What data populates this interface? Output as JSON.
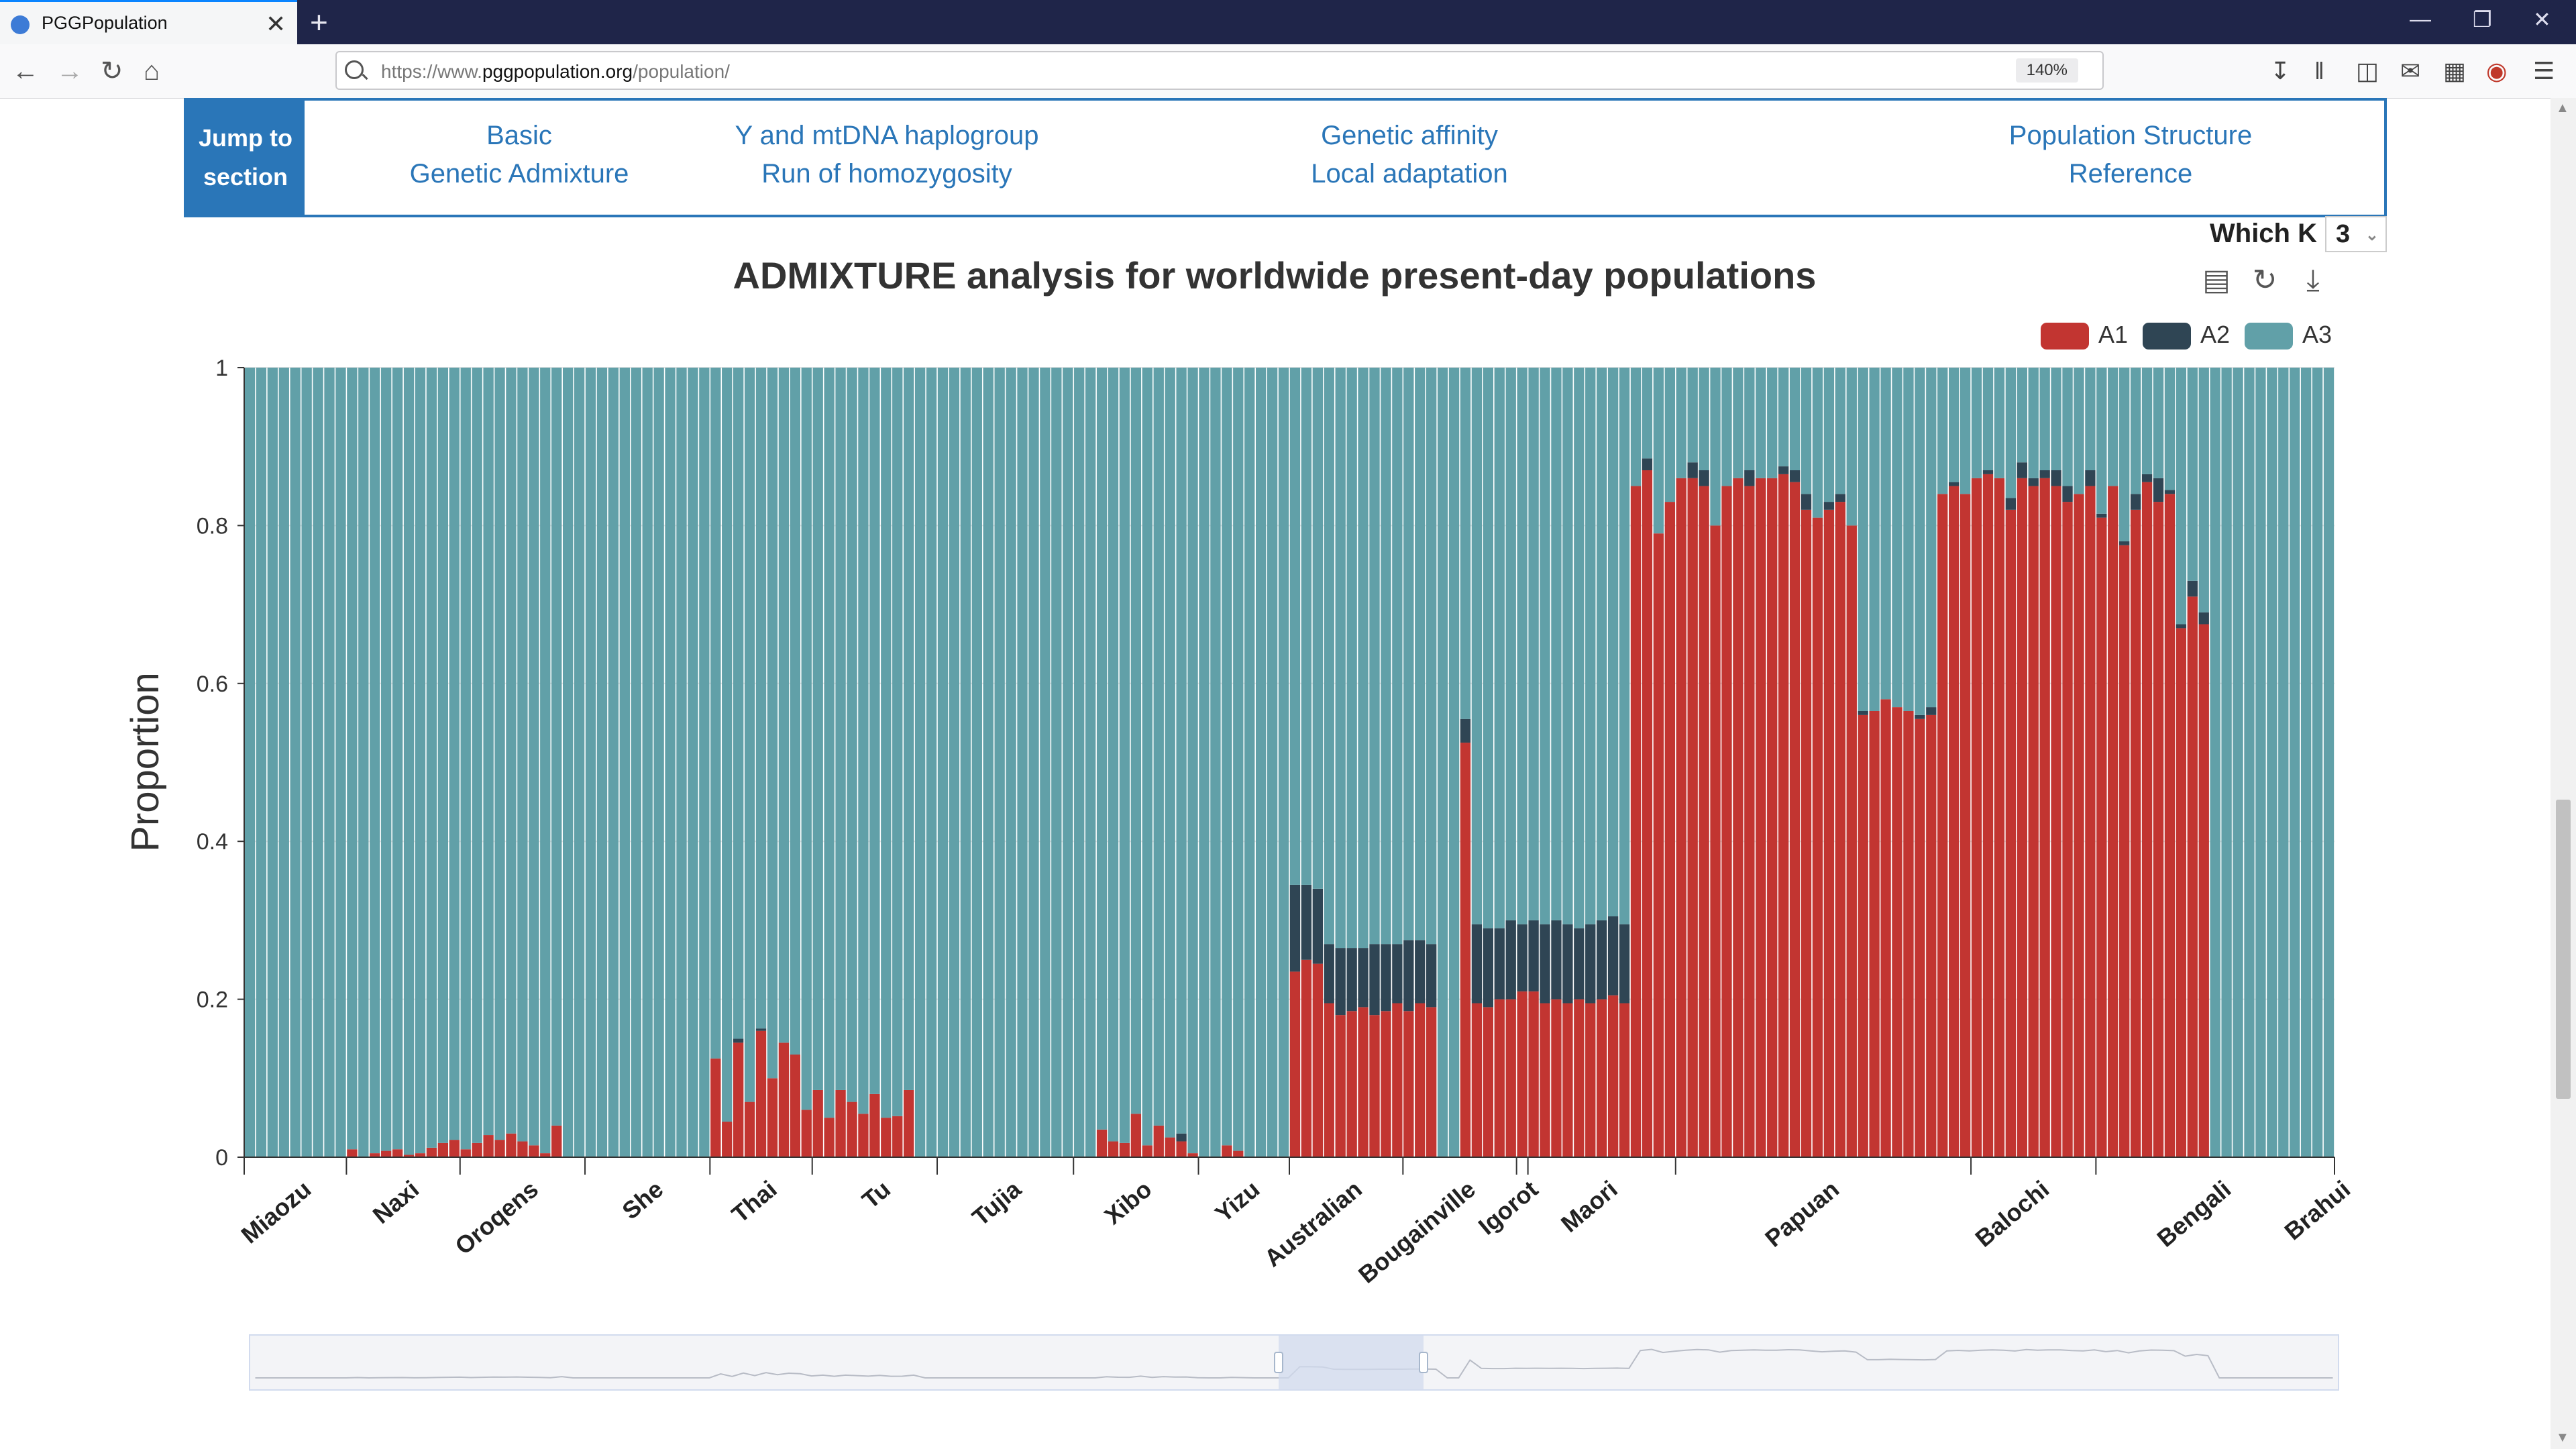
{
  "browser": {
    "tab_title": "PGGPopulation",
    "tab_close": "✕",
    "new_tab": "+",
    "url_prefix": "https://www.",
    "url_domain": "pggpopulation.org",
    "url_path": "/population/",
    "zoom": "140%",
    "window_controls": [
      "—",
      "❐",
      "✕"
    ]
  },
  "jump": {
    "label": "Jump to section",
    "columns": [
      [
        "Basic",
        "Genetic Admixture"
      ],
      [
        "Y and mtDNA haplogroup",
        "Run of homozygosity"
      ],
      [
        "Genetic affinity",
        "Local adaptation"
      ],
      [
        "Population Structure",
        "Reference"
      ]
    ]
  },
  "which_k": {
    "label": "Which K",
    "value": "3"
  },
  "chart_title": "ADMIXTURE analysis for worldwide present-day populations",
  "legend": [
    {
      "name": "A1",
      "color": "#c23531"
    },
    {
      "name": "A2",
      "color": "#2f4554"
    },
    {
      "name": "A3",
      "color": "#61a0a8"
    }
  ],
  "icons": {
    "back": "back-arrow-icon",
    "forward": "forward-arrow-icon",
    "reload": "reload-icon",
    "home": "home-icon",
    "data_view": "data-view-icon",
    "restore": "restore-icon",
    "save": "save-image-icon"
  },
  "chart_data": {
    "type": "bar",
    "stacked": true,
    "ylabel": "Proportion",
    "ylim": [
      0,
      1
    ],
    "yticks": [
      "0",
      "0.2",
      "0.4",
      "0.6",
      "0.8",
      "1"
    ],
    "populations": [
      "Miaozu",
      "Naxi",
      "Oroqens",
      "She",
      "Thai",
      "Tu",
      "Tujia",
      "Xibo",
      "Yizu",
      "Australian",
      "Bougainville",
      "Igorot",
      "Maori",
      "Papuan",
      "Balochi",
      "Bengali",
      "Brahui"
    ],
    "series": [
      {
        "name": "A1",
        "values": [
          0,
          0,
          0,
          0,
          0,
          0,
          0,
          0,
          0,
          0.01,
          0,
          0.005,
          0.008,
          0.01,
          0.003,
          0.005,
          0.012,
          0.018,
          0.022,
          0.01,
          0.018,
          0.028,
          0.022,
          0.03,
          0.02,
          0.015,
          0.005,
          0.04,
          0,
          0,
          0,
          0,
          0,
          0,
          0,
          0,
          0,
          0,
          0,
          0,
          0,
          0.125,
          0.045,
          0.145,
          0.07,
          0.16,
          0.1,
          0.145,
          0.13,
          0.06,
          0.085,
          0.05,
          0.085,
          0.07,
          0.055,
          0.08,
          0.05,
          0.052,
          0.085,
          0,
          0,
          0,
          0,
          0,
          0,
          0,
          0,
          0,
          0,
          0,
          0,
          0,
          0,
          0,
          0,
          0.035,
          0.02,
          0.018,
          0.055,
          0.015,
          0.04,
          0.025,
          0.02,
          0.005,
          0,
          0,
          0.015,
          0.008,
          0,
          0,
          0,
          0,
          0.235,
          0.25,
          0.245,
          0.195,
          0.18,
          0.185,
          0.19,
          0.18,
          0.185,
          0.195,
          0.185,
          0.195,
          0.19,
          0,
          0,
          0.525,
          0.195,
          0.19,
          0.2,
          0.2,
          0.21,
          0.21,
          0.195,
          0.2,
          0.195,
          0.2,
          0.195,
          0.2,
          0.205,
          0.195,
          0.85,
          0.87,
          0.79,
          0.83,
          0.86,
          0.86,
          0.85,
          0.8,
          0.85,
          0.86,
          0.85,
          0.86,
          0.86,
          0.865,
          0.855,
          0.82,
          0.81,
          0.82,
          0.83,
          0.8,
          0.56,
          0.565,
          0.58,
          0.57,
          0.565,
          0.555,
          0.56,
          0.84,
          0.85,
          0.84,
          0.86,
          0.865,
          0.86,
          0.82,
          0.86,
          0.85,
          0.86,
          0.85,
          0.83,
          0.84,
          0.85,
          0.81,
          0.85,
          0.775,
          0.82,
          0.855,
          0.83,
          0.84,
          0.67,
          0.71,
          0.675
        ]
      },
      {
        "name": "A2",
        "values": [
          0,
          0,
          0,
          0,
          0,
          0,
          0,
          0,
          0,
          0,
          0,
          0,
          0,
          0,
          0,
          0,
          0,
          0,
          0,
          0,
          0,
          0,
          0,
          0,
          0,
          0,
          0,
          0,
          0,
          0,
          0,
          0,
          0,
          0,
          0,
          0,
          0,
          0,
          0,
          0,
          0,
          0,
          0,
          0.005,
          0,
          0.003,
          0,
          0,
          0,
          0,
          0,
          0,
          0,
          0,
          0,
          0,
          0,
          0,
          0,
          0,
          0,
          0,
          0,
          0,
          0,
          0,
          0,
          0,
          0,
          0,
          0,
          0,
          0,
          0,
          0,
          0,
          0,
          0,
          0,
          0,
          0,
          0,
          0.01,
          0,
          0,
          0,
          0,
          0,
          0,
          0,
          0,
          0,
          0.11,
          0.095,
          0.095,
          0.075,
          0.085,
          0.08,
          0.075,
          0.09,
          0.085,
          0.075,
          0.09,
          0.08,
          0.08,
          0,
          0,
          0.03,
          0.1,
          0.1,
          0.09,
          0.1,
          0.085,
          0.09,
          0.1,
          0.1,
          0.1,
          0.09,
          0.1,
          0.1,
          0.1,
          0.1,
          0,
          0.015,
          0,
          0,
          0,
          0.02,
          0.02,
          0,
          0,
          0,
          0.02,
          0,
          0,
          0.01,
          0.015,
          0.02,
          0,
          0.01,
          0.01,
          0,
          0.005,
          0,
          0,
          0,
          0,
          0.005,
          0.01,
          0,
          0.005,
          0,
          0,
          0.005,
          0,
          0.015,
          0.02,
          0.01,
          0.01,
          0.02,
          0.02,
          0,
          0.02,
          0.005,
          0,
          0.005,
          0.02,
          0.01,
          0.03,
          0.005,
          0.005,
          0.02,
          0.015
        ]
      },
      {
        "name": "A3",
        "note": "remainder to 1"
      }
    ],
    "bar_count": 184,
    "population_tick_index": [
      0,
      9,
      19,
      30,
      41,
      50,
      61,
      73,
      84,
      92,
      102,
      112,
      113,
      126,
      152,
      163,
      184
    ]
  }
}
